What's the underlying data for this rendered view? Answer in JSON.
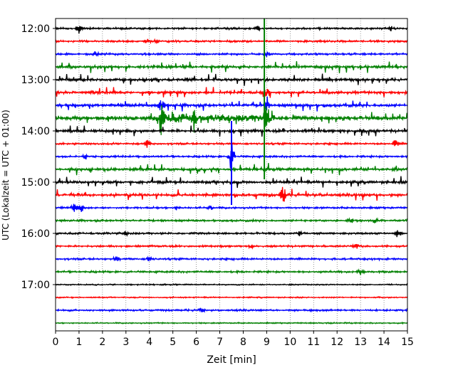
{
  "chart_data": {
    "type": "line",
    "title": "",
    "xlabel": "Zeit  [min]",
    "ylabel": "UTC (Lokalzeit = UTC + 01:00)",
    "xlim": [
      0,
      15
    ],
    "x_ticks": [
      "0",
      "1",
      "2",
      "3",
      "4",
      "5",
      "6",
      "7",
      "8",
      "9",
      "10",
      "11",
      "12",
      "13",
      "14",
      "15"
    ],
    "y_ticks": [
      "12:00",
      "13:00",
      "14:00",
      "15:00",
      "16:00",
      "17:00"
    ],
    "grid": "x-dotted",
    "colors": [
      "#000000",
      "#ff0000",
      "#0000ff",
      "#008000"
    ],
    "trace_start_hour": 12.0,
    "trace_interval_min": 15,
    "trace_count": 24,
    "traces": [
      {
        "start": "12:00",
        "color": "#000000",
        "activity": "low",
        "events": [
          {
            "t": 1.0,
            "amp": 2
          },
          {
            "t": 8.6,
            "amp": 1
          },
          {
            "t": 14.3,
            "amp": 1
          }
        ]
      },
      {
        "start": "12:15",
        "color": "#ff0000",
        "activity": "low",
        "events": [
          {
            "t": 3.9,
            "amp": 1
          },
          {
            "t": 4.3,
            "amp": 1
          }
        ]
      },
      {
        "start": "12:30",
        "color": "#0000ff",
        "activity": "low",
        "events": [
          {
            "t": 1.7,
            "amp": 1
          },
          {
            "t": 9.0,
            "amp": 1
          }
        ]
      },
      {
        "start": "12:45",
        "color": "#008000",
        "activity": "pulses",
        "events": []
      },
      {
        "start": "13:00",
        "color": "#000000",
        "activity": "pulses",
        "events": []
      },
      {
        "start": "13:15",
        "color": "#ff0000",
        "activity": "pulses",
        "events": [
          {
            "t": 9.0,
            "amp": 2
          }
        ]
      },
      {
        "start": "13:30",
        "color": "#0000ff",
        "activity": "pulses",
        "events": [
          {
            "t": 4.5,
            "amp": 3
          },
          {
            "t": 9.0,
            "amp": 2
          }
        ]
      },
      {
        "start": "13:45",
        "color": "#008000",
        "activity": "burst",
        "events": [
          {
            "t": 4.5,
            "amp": 6
          },
          {
            "t": 5.9,
            "amp": 3
          },
          {
            "t": 9.0,
            "amp": 5
          }
        ]
      },
      {
        "start": "14:00",
        "color": "#000000",
        "activity": "pulses",
        "events": [
          {
            "t": 13.1,
            "amp": 2
          }
        ]
      },
      {
        "start": "14:15",
        "color": "#ff0000",
        "activity": "low",
        "events": [
          {
            "t": 3.9,
            "amp": 2
          },
          {
            "t": 14.5,
            "amp": 2
          }
        ]
      },
      {
        "start": "14:30",
        "color": "#0000ff",
        "activity": "low",
        "events": [
          {
            "t": 1.3,
            "amp": 1
          },
          {
            "t": 7.5,
            "amp": 7
          }
        ]
      },
      {
        "start": "14:45",
        "color": "#008000",
        "activity": "pulses",
        "events": []
      },
      {
        "start": "15:00",
        "color": "#000000",
        "activity": "pulses",
        "events": []
      },
      {
        "start": "15:15",
        "color": "#ff0000",
        "activity": "pulses",
        "events": [
          {
            "t": 9.7,
            "amp": 4
          }
        ]
      },
      {
        "start": "15:30",
        "color": "#0000ff",
        "activity": "low",
        "events": [
          {
            "t": 0.8,
            "amp": 2
          },
          {
            "t": 1.1,
            "amp": 2
          },
          {
            "t": 5.2,
            "amp": 1
          },
          {
            "t": 6.6,
            "amp": 1
          }
        ]
      },
      {
        "start": "15:45",
        "color": "#008000",
        "activity": "low",
        "events": [
          {
            "t": 12.6,
            "amp": 1
          },
          {
            "t": 13.6,
            "amp": 1
          }
        ]
      },
      {
        "start": "16:00",
        "color": "#000000",
        "activity": "low",
        "events": [
          {
            "t": 3.0,
            "amp": 1
          },
          {
            "t": 10.4,
            "amp": 1
          },
          {
            "t": 14.6,
            "amp": 2
          }
        ]
      },
      {
        "start": "16:15",
        "color": "#ff0000",
        "activity": "low",
        "events": [
          {
            "t": 8.3,
            "amp": 1
          },
          {
            "t": 12.8,
            "amp": 1
          }
        ]
      },
      {
        "start": "16:30",
        "color": "#0000ff",
        "activity": "low",
        "events": [
          {
            "t": 2.6,
            "amp": 1
          },
          {
            "t": 4.0,
            "amp": 1
          }
        ]
      },
      {
        "start": "16:45",
        "color": "#008000",
        "activity": "low",
        "events": [
          {
            "t": 13.0,
            "amp": 1
          }
        ]
      },
      {
        "start": "17:00",
        "color": "#000000",
        "activity": "quiet",
        "events": []
      },
      {
        "start": "17:15",
        "color": "#ff0000",
        "activity": "quiet",
        "events": []
      },
      {
        "start": "17:30",
        "color": "#0000ff",
        "activity": "low",
        "events": [
          {
            "t": 6.2,
            "amp": 1
          }
        ]
      },
      {
        "start": "17:45",
        "color": "#008000",
        "activity": "quiet",
        "events": []
      }
    ],
    "vertical_spikes": [
      {
        "t": 8.9,
        "from": "12:00",
        "to": "14:45",
        "color": "#008000"
      },
      {
        "t": 7.5,
        "from": "14:00",
        "to": "15:15",
        "color": "#0000ff"
      }
    ]
  }
}
